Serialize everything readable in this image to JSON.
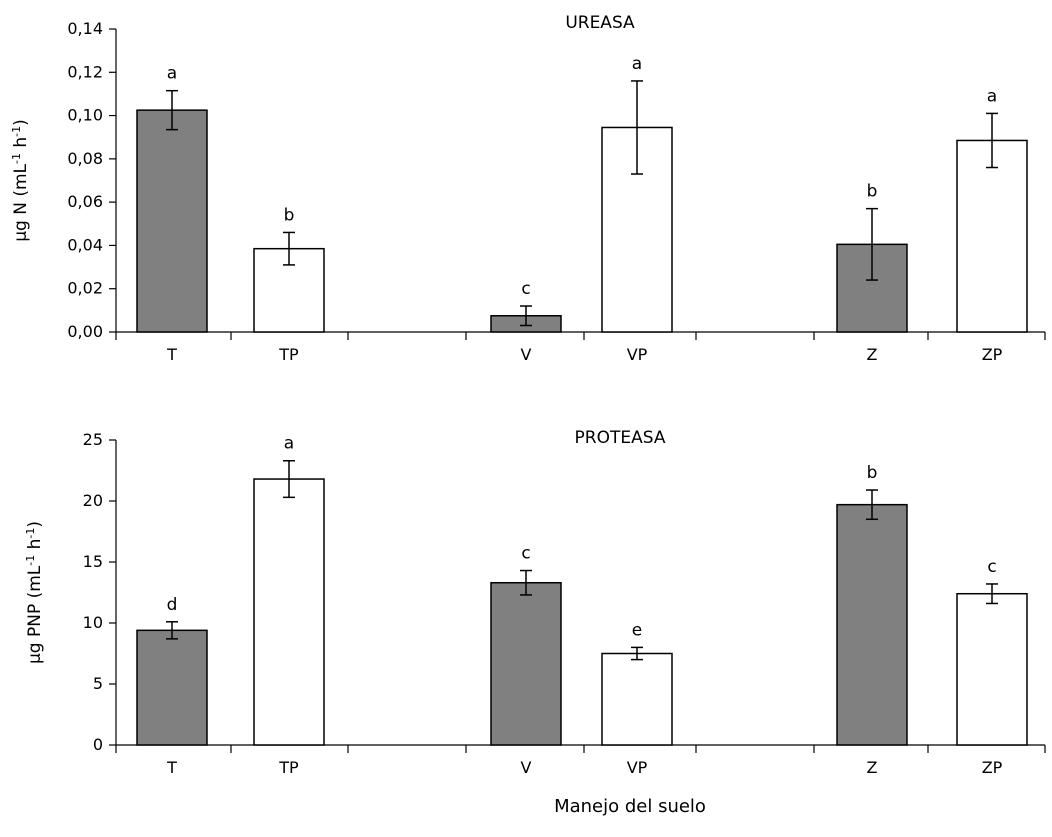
{
  "chart_data": [
    {
      "type": "bar",
      "title": "UREASA",
      "ylabel": {
        "base": "µg N (mL",
        "sup1": "-1",
        "mid": " h",
        "sup2": "-1",
        "end": ")"
      },
      "ylim": [
        0,
        0.14
      ],
      "yticks": [
        "0,00",
        "0,02",
        "0,04",
        "0,06",
        "0,08",
        "0,10",
        "0,12",
        "0,14"
      ],
      "ytick_values": [
        0,
        0.02,
        0.04,
        0.06,
        0.08,
        0.1,
        0.12,
        0.14
      ],
      "categories": [
        "T",
        "TP",
        "V",
        "VP",
        "Z",
        "ZP"
      ],
      "values": [
        0.1025,
        0.0385,
        0.0075,
        0.0945,
        0.0405,
        0.0885
      ],
      "errors": [
        0.009,
        0.0075,
        0.0045,
        0.0215,
        0.0165,
        0.0125
      ],
      "letters": [
        "a",
        "b",
        "c",
        "a",
        "b",
        "a"
      ],
      "fills": [
        "#808080",
        "#ffffff",
        "#808080",
        "#ffffff",
        "#808080",
        "#ffffff"
      ]
    },
    {
      "type": "bar",
      "title": "PROTEASA",
      "ylabel": {
        "base": "µg PNP (mL",
        "sup1": "-1",
        "mid": " h",
        "sup2": "-1",
        "end": ")"
      },
      "ylim": [
        0,
        25
      ],
      "yticks": [
        "0",
        "5",
        "10",
        "15",
        "20",
        "25"
      ],
      "ytick_values": [
        0,
        5,
        10,
        15,
        20,
        25
      ],
      "categories": [
        "T",
        "TP",
        "V",
        "VP",
        "Z",
        "ZP"
      ],
      "values": [
        9.4,
        21.8,
        13.3,
        7.5,
        19.7,
        12.4
      ],
      "errors": [
        0.7,
        1.5,
        1.0,
        0.5,
        1.2,
        0.8
      ],
      "letters": [
        "d",
        "a",
        "c",
        "e",
        "b",
        "c"
      ],
      "fills": [
        "#808080",
        "#ffffff",
        "#808080",
        "#ffffff",
        "#808080",
        "#ffffff"
      ]
    }
  ],
  "xlabel": "Manejo del suelo"
}
